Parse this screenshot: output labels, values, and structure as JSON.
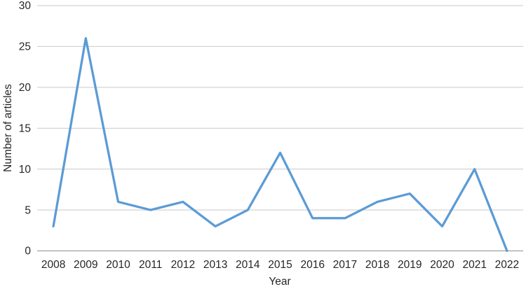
{
  "chart_data": {
    "type": "line",
    "categories": [
      "2008",
      "2009",
      "2010",
      "2011",
      "2012",
      "2013",
      "2014",
      "2015",
      "2016",
      "2017",
      "2018",
      "2019",
      "2020",
      "2021",
      "2022"
    ],
    "series": [
      {
        "name": "articles",
        "values": [
          3,
          26,
          6,
          5,
          6,
          3,
          5,
          12,
          4,
          4,
          6,
          7,
          3,
          10,
          0
        ]
      }
    ],
    "xlabel": "Year",
    "ylabel": "Number of articles",
    "ylim": [
      0,
      30
    ],
    "yticks": [
      0,
      5,
      10,
      15,
      20,
      25,
      30
    ],
    "grid": true,
    "legend": false,
    "markers": false,
    "line_color": "#5B9BD5",
    "gridline_color": "#C9C9C9",
    "axis_line_color": "#A0A0A0",
    "text_color": "#262626",
    "background_color": "#FFFFFF"
  }
}
